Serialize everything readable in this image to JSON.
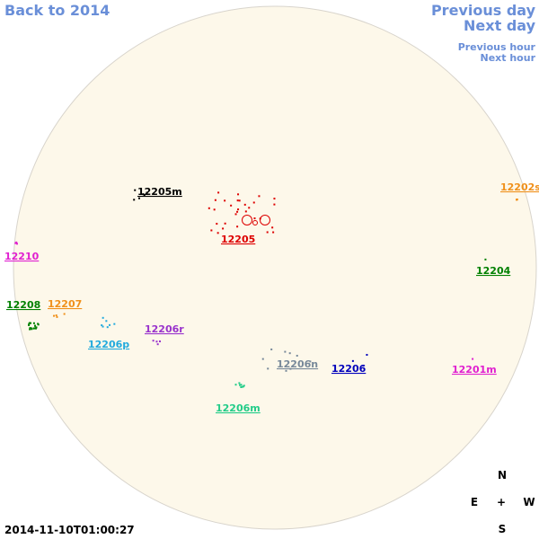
{
  "nav": {
    "back": "Back to 2014",
    "previous_day": "Previous day",
    "next_day": "Next day",
    "previous_hour": "Previous hour",
    "next_hour": "Next hour"
  },
  "regions": [
    {
      "label": "12205m",
      "color": "#000000"
    },
    {
      "label": "12202s",
      "color": "#f0901a"
    },
    {
      "label": "12205",
      "color": "#dd0000"
    },
    {
      "label": "12210",
      "color": "#e020d0"
    },
    {
      "label": "12204",
      "color": "#008000"
    },
    {
      "label": "12208",
      "color": "#008000"
    },
    {
      "label": "12207",
      "color": "#f0901a"
    },
    {
      "label": "12206r",
      "color": "#9933cc"
    },
    {
      "label": "12206p",
      "color": "#22aadd"
    },
    {
      "label": "12206n",
      "color": "#778899"
    },
    {
      "label": "12206",
      "color": "#0000bb"
    },
    {
      "label": "12201m",
      "color": "#e020d0"
    },
    {
      "label": "12206m",
      "color": "#22cc88"
    }
  ],
  "compass": {
    "north": "N",
    "east": "E",
    "center": "+",
    "west": "W",
    "south": "S"
  },
  "timestamp": "2014-11-10T01:00:27"
}
